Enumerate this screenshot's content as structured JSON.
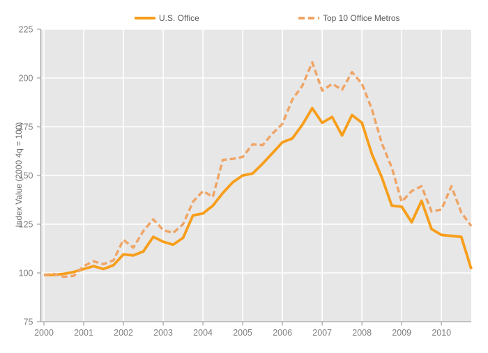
{
  "chart_data": {
    "type": "line",
    "title": "",
    "xlabel": "",
    "ylabel": "Index Value (2000 4q = 100)",
    "ylim": [
      75,
      225
    ],
    "y_ticks": [
      75,
      100,
      125,
      150,
      175,
      200,
      225
    ],
    "x_tick_labels": [
      "2000",
      "2001",
      "2002",
      "2003",
      "2004",
      "2005",
      "2006",
      "2007",
      "2008",
      "2009",
      "2010"
    ],
    "grid": true,
    "legend_position": "top",
    "plot_bg": "#E7E7E7",
    "grid_color": "#FFFFFF",
    "axis_color": "#A6A6A6",
    "tick_label_color": "#808080",
    "axis_title_color": "#666666",
    "categories": [
      "2000 Q1",
      "2000 Q2",
      "2000 Q3",
      "2000 Q4",
      "2001 Q1",
      "2001 Q2",
      "2001 Q3",
      "2001 Q4",
      "2002 Q1",
      "2002 Q2",
      "2002 Q3",
      "2002 Q4",
      "2003 Q1",
      "2003 Q2",
      "2003 Q3",
      "2003 Q4",
      "2004 Q1",
      "2004 Q2",
      "2004 Q3",
      "2004 Q4",
      "2005 Q1",
      "2005 Q2",
      "2005 Q3",
      "2005 Q4",
      "2006 Q1",
      "2006 Q2",
      "2006 Q3",
      "2006 Q4",
      "2007 Q1",
      "2007 Q2",
      "2007 Q3",
      "2007 Q4",
      "2008 Q1",
      "2008 Q2",
      "2008 Q3",
      "2008 Q4",
      "2009 Q1",
      "2009 Q2",
      "2009 Q3",
      "2009 Q4",
      "2010 Q1",
      "2010 Q2",
      "2010 Q3",
      "2010 Q4"
    ],
    "series": [
      {
        "name": "U.S. Office",
        "style": "solid",
        "color": "#F79E1B",
        "values": [
          99,
          99,
          99.5,
          100.5,
          102,
          103.5,
          102,
          104,
          109.5,
          109,
          111,
          118.5,
          116,
          114.5,
          118,
          129.5,
          130.5,
          134.5,
          141,
          146.5,
          150,
          151,
          156,
          161.5,
          167,
          169,
          176,
          184.5,
          177,
          180,
          170.5,
          181,
          177,
          161,
          149,
          134.5,
          134,
          126,
          137,
          122.5,
          119.5,
          119,
          118.5,
          102
        ]
      },
      {
        "name": "Top 10 Office Metros",
        "style": "dashed",
        "color": "#EFA465",
        "values": [
          99,
          99.5,
          98,
          98.5,
          103.5,
          106,
          104.5,
          106.5,
          117,
          113,
          121.5,
          127.5,
          122,
          120.5,
          125,
          136.5,
          142,
          139,
          158,
          158.5,
          159.5,
          166,
          165.5,
          171.5,
          176.5,
          189,
          196,
          208,
          193.5,
          197,
          194,
          203,
          197,
          184,
          166.5,
          154,
          136.5,
          142,
          144.5,
          131.5,
          132.5,
          144.5,
          131,
          124
        ]
      }
    ]
  }
}
